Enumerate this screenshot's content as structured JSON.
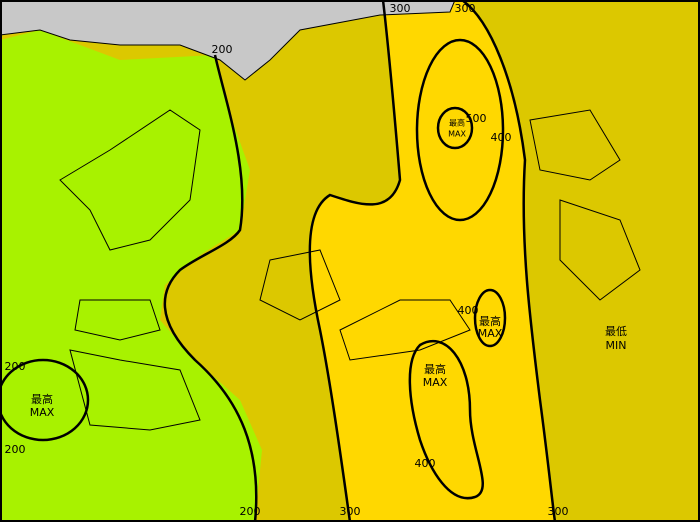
{
  "contour_labels": [
    "300",
    "300",
    "200",
    "500",
    "400",
    "400",
    "400",
    "200",
    "200",
    "200",
    "300",
    "300"
  ],
  "markers": [
    {
      "name": "最高",
      "code": "MAX"
    },
    {
      "name": "最高",
      "code": "MAX"
    },
    {
      "name": "最高",
      "code": "MAX"
    },
    {
      "name": "最高",
      "code": "MAX"
    },
    {
      "name": "最低",
      "code": "MIN"
    }
  ]
}
